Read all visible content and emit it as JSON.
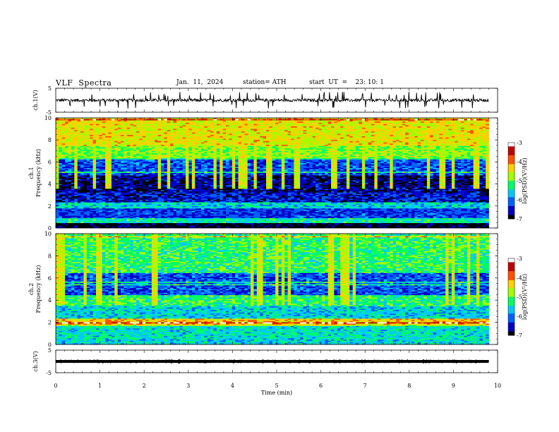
{
  "header": {
    "title": "VLF  Spectra",
    "date": "Jan.  11,  2024",
    "station": "station= ATH",
    "start": "start  UT  =    23: 10: 1"
  },
  "chart_data": [
    {
      "type": "line",
      "name": "ch1-waveform",
      "ylabel": "ch.1(V)",
      "ylim": [
        -5,
        5
      ],
      "yticks": [
        "5",
        "-5"
      ],
      "xlim": [
        0,
        10
      ],
      "baseline": 0.0,
      "amplitude_typical": 1.0,
      "spike_amplitude_max": 3.5,
      "data_extent_min": 9.8,
      "color": "#000000"
    },
    {
      "type": "heatmap",
      "name": "ch1-spectrogram",
      "ylabel": "ch.1\nFrequency  (kHz)",
      "ylim": [
        0,
        10
      ],
      "yticks": [
        "0",
        "2",
        "4",
        "6",
        "8",
        "10"
      ],
      "xlim": [
        0,
        10
      ],
      "data_extent_min": 9.8,
      "colorbar": {
        "label": "log(PSD)(V²/Hz)",
        "range": [
          -7,
          -3
        ],
        "ticks": [
          "-3",
          "-4",
          "-5",
          "-6",
          "-7"
        ],
        "colors": [
          "#000000",
          "#0000c8",
          "#0060ff",
          "#00c8ff",
          "#00ff60",
          "#a0ff00",
          "#ffd000",
          "#ff5000",
          "#c00000",
          "#ffffff"
        ]
      },
      "bands": [
        {
          "f": [
            0.0,
            0.5
          ],
          "level": -7.0
        },
        {
          "f": [
            0.5,
            0.9
          ],
          "level": -5.4
        },
        {
          "f": [
            0.9,
            1.8
          ],
          "level": -6.3
        },
        {
          "f": [
            1.8,
            2.3
          ],
          "level": -5.6
        },
        {
          "f": [
            2.3,
            3.2
          ],
          "level": -6.5
        },
        {
          "f": [
            3.2,
            4.8
          ],
          "level": -6.7
        },
        {
          "f": [
            4.8,
            6.3
          ],
          "level": -6.2
        },
        {
          "f": [
            6.3,
            7.5
          ],
          "level": -4.9
        },
        {
          "f": [
            7.5,
            10.0
          ],
          "level": -4.5
        }
      ]
    },
    {
      "type": "heatmap",
      "name": "ch2-spectrogram",
      "ylabel": "ch.2\nFrequency  (kHz)",
      "ylim": [
        0,
        10
      ],
      "yticks": [
        "0",
        "2",
        "4",
        "6",
        "8",
        "10"
      ],
      "xlim": [
        0,
        10
      ],
      "data_extent_min": 9.8,
      "colorbar": {
        "label": "log(PSD)(V²/Hz)",
        "range": [
          -7,
          -3
        ],
        "ticks": [
          "-3",
          "-4",
          "-5",
          "-6",
          "-7"
        ],
        "colors": [
          "#000000",
          "#0000c8",
          "#0060ff",
          "#00c8ff",
          "#00ff60",
          "#a0ff00",
          "#ffd000",
          "#ff5000",
          "#c00000",
          "#ffffff"
        ]
      },
      "bands": [
        {
          "f": [
            0.0,
            0.5
          ],
          "level": -5.6
        },
        {
          "f": [
            0.5,
            1.8
          ],
          "level": -5.5
        },
        {
          "f": [
            1.8,
            2.3
          ],
          "level": -4.3
        },
        {
          "f": [
            2.3,
            3.5
          ],
          "level": -5.6
        },
        {
          "f": [
            3.5,
            4.5
          ],
          "level": -5.2
        },
        {
          "f": [
            4.5,
            6.5
          ],
          "level": -6.2
        },
        {
          "f": [
            6.5,
            10.0
          ],
          "level": -5.2
        }
      ]
    },
    {
      "type": "line",
      "name": "ch3-waveform",
      "ylabel": "ch.3(V)",
      "ylim": [
        -5,
        5
      ],
      "yticks": [
        "5",
        "-5"
      ],
      "xlim": [
        0,
        10
      ],
      "baseline": 0.0,
      "amplitude_typical": 0.3,
      "data_extent_min": 9.8,
      "color": "#000000"
    }
  ],
  "xaxis": {
    "label": "Time  (min)",
    "ticks": [
      "0",
      "1",
      "2",
      "3",
      "4",
      "5",
      "6",
      "7",
      "8",
      "9",
      "10"
    ]
  }
}
